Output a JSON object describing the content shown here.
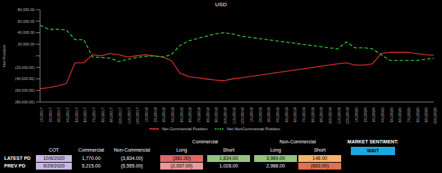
{
  "chart_data": {
    "type": "line",
    "title": "USD",
    "y_label": "Net Position",
    "categories": [
      "1/1/2017",
      "2/1/2017",
      "3/1/2017",
      "4/1/2017",
      "5/1/2017",
      "6/1/2017",
      "7/1/2017",
      "8/1/2017",
      "9/1/2017",
      "10/1/2017",
      "11/1/2017",
      "12/1/2017",
      "1/1/2018",
      "2/1/2018",
      "3/1/2018",
      "4/1/2018",
      "5/1/2018",
      "6/1/2018",
      "7/1/2018",
      "8/1/2018",
      "9/1/2018",
      "10/1/2018",
      "11/1/2018",
      "12/1/2018",
      "1/1/2019",
      "2/1/2019",
      "3/1/2019",
      "4/1/2019",
      "5/1/2019",
      "6/1/2019",
      "7/1/2019",
      "8/1/2019",
      "9/1/2019",
      "10/1/2019",
      "11/1/2019",
      "12/1/2019",
      "1/1/2020",
      "2/1/2020",
      "3/1/2020",
      "4/1/2020",
      "5/1/2020",
      "6/1/2020",
      "7/1/2020",
      "8/1/2020",
      "9/1/2020",
      "10/1/2020"
    ],
    "series": [
      {
        "name": "Net Commercial Position",
        "color": "#e03030",
        "line_style": "solid",
        "values": [
          -57000,
          -55000,
          -52000,
          -48000,
          -12000,
          -12000,
          2000,
          0,
          4000,
          2000,
          -2000,
          0,
          2000,
          0,
          -2000,
          -8000,
          -30000,
          -36000,
          -38000,
          -40000,
          -42000,
          -43000,
          -40000,
          -38000,
          null,
          null,
          null,
          null,
          null,
          null,
          null,
          null,
          null,
          null,
          -14000,
          -12000,
          -16000,
          -16000,
          -14000,
          4000,
          6000,
          6000,
          6000,
          4000,
          2000,
          1000
        ]
      },
      {
        "name": "Net NonCommercial Position",
        "color": "#33cc33",
        "line_style": "dashed",
        "values": [
          53000,
          46000,
          46000,
          45000,
          28000,
          28000,
          -2000,
          -3000,
          -4000,
          -10000,
          -6000,
          -3000,
          -1000,
          0,
          -2000,
          2000,
          18000,
          26000,
          30000,
          34000,
          38000,
          40000,
          38000,
          34000,
          null,
          null,
          null,
          null,
          null,
          null,
          null,
          null,
          null,
          null,
          12000,
          24000,
          14000,
          14000,
          12000,
          2000,
          -8000,
          -8000,
          -8000,
          -8000,
          -6000,
          -4000
        ]
      }
    ],
    "ylim": [
      -80000,
      80000
    ],
    "yticks": [
      {
        "value": -80000,
        "label": "(80,000.00)"
      },
      {
        "value": -60000,
        "label": "(60,000.00)"
      },
      {
        "value": -40000,
        "label": "(40,000.00)"
      },
      {
        "value": -20000,
        "label": "(20,000.00)"
      },
      {
        "value": 0,
        "label": "-"
      },
      {
        "value": 20000,
        "label": "20,000.00"
      },
      {
        "value": 40000,
        "label": "40,000.00"
      },
      {
        "value": 60000,
        "label": "60,000.00"
      },
      {
        "value": 80000,
        "label": "80,000.00"
      }
    ],
    "grid": false,
    "legend": "bottom"
  },
  "table": {
    "group_headers": [
      "Commercial",
      "Non-Commercial"
    ],
    "columns": [
      "COT",
      "Commercial",
      "Non-Commercial",
      "Long",
      "Short",
      "Long",
      "Short"
    ],
    "rows": [
      {
        "label": "LATEST PD",
        "cells": [
          "10/6/2020",
          "1,770.00",
          "(3,834.00)",
          "(381.00)",
          "1,834.00",
          "3,989.00",
          "148.00"
        ]
      },
      {
        "label": "PREV PD",
        "cells": [
          "9/29/2020",
          "5,215.00",
          "(5,555.00)",
          "(2,037.00)",
          "1,028.00",
          "2,988.00",
          "(663.00)"
        ]
      }
    ]
  },
  "sentiment": {
    "label": "MARKET SENTIMENT:",
    "value": "WAIT"
  }
}
